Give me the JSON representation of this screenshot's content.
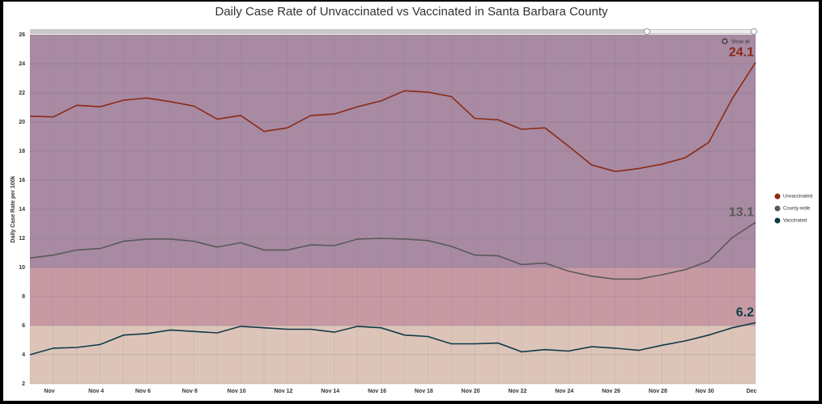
{
  "chart_data": {
    "type": "line",
    "title": "Daily Case Rate of Unvaccinated vs Vaccinated in Santa Barbara County",
    "y_label": "Daily Case Rate per 100k",
    "zoom_button": "Show all",
    "categories": [
      null,
      "Nov",
      null,
      "Nov 4",
      null,
      "Nov 6",
      null,
      "Nov 8",
      null,
      "Nov 10",
      null,
      "Nov 12",
      null,
      "Nov 14",
      null,
      "Nov 16",
      null,
      "Nov 18",
      null,
      "Nov 20",
      null,
      "Nov 22",
      null,
      "Nov 24",
      null,
      "Nov 26",
      null,
      "Nov 28",
      null,
      "Nov 30",
      null,
      "Dec"
    ],
    "series": [
      {
        "name": "Unvaccinated",
        "color": "#8b2a14",
        "values": [
          20.4,
          20.35,
          21.15,
          21.05,
          21.5,
          21.65,
          21.4,
          21.1,
          20.2,
          20.45,
          19.35,
          19.6,
          20.45,
          20.55,
          21.05,
          21.45,
          22.15,
          22.05,
          21.75,
          20.25,
          20.15,
          19.5,
          19.6,
          18.35,
          17.05,
          16.6,
          16.8,
          17.1,
          17.55,
          18.6,
          21.6,
          24.1
        ]
      },
      {
        "name": "County-wide",
        "color": "#5a5a5a",
        "values": [
          10.65,
          10.85,
          11.2,
          11.3,
          11.8,
          11.95,
          11.95,
          11.8,
          11.4,
          11.7,
          11.2,
          11.2,
          11.55,
          11.5,
          11.95,
          12.0,
          11.95,
          11.85,
          11.45,
          10.85,
          10.8,
          10.2,
          10.3,
          9.75,
          9.4,
          9.2,
          9.2,
          9.5,
          9.85,
          10.45,
          12.05,
          13.1
        ]
      },
      {
        "name": "Vaccinated",
        "color": "#0f3a47",
        "values": [
          4.0,
          4.45,
          4.5,
          4.7,
          5.35,
          5.45,
          5.7,
          5.6,
          5.5,
          5.95,
          5.85,
          5.75,
          5.75,
          5.55,
          5.95,
          5.85,
          5.35,
          5.25,
          4.75,
          4.75,
          4.8,
          4.2,
          4.35,
          4.25,
          4.55,
          4.45,
          4.3,
          4.65,
          4.95,
          5.35,
          5.85,
          6.2
        ]
      }
    ],
    "bands": [
      {
        "from": 2,
        "to": 6,
        "color": "#dcc5b8"
      },
      {
        "from": 6,
        "to": 10,
        "color": "#c79aa3"
      },
      {
        "from": 10,
        "to": 26,
        "color": "#a88aa3"
      }
    ],
    "ylim": [
      2,
      26
    ],
    "yticks": [
      2,
      4,
      6,
      8,
      10,
      12,
      14,
      16,
      18,
      20,
      22,
      24,
      26
    ],
    "grid": true
  }
}
